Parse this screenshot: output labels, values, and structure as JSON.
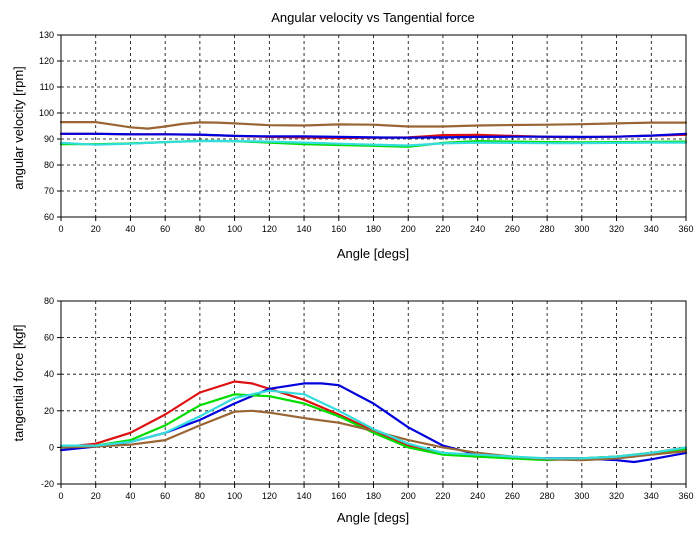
{
  "chart_data": [
    {
      "type": "line",
      "title": "Angular velocity vs Tangential force",
      "xlabel": "Angle [degs]",
      "ylabel": "angular velocity [rpm]",
      "xlim": [
        0,
        360
      ],
      "ylim": [
        60,
        130
      ],
      "x_ticks": [
        "0",
        "20",
        "40",
        "60",
        "80",
        "100",
        "120",
        "140",
        "160",
        "180",
        "200",
        "220",
        "240",
        "260",
        "280",
        "300",
        "320",
        "340",
        "360"
      ],
      "y_ticks": [
        "60",
        "70",
        "80",
        "90",
        "100",
        "110",
        "120",
        "130"
      ],
      "grid": true,
      "series": [
        {
          "color": "#996633",
          "x": [
            0,
            20,
            30,
            40,
            50,
            60,
            70,
            80,
            90,
            100,
            120,
            140,
            160,
            180,
            200,
            220,
            240,
            260,
            280,
            300,
            320,
            340,
            360
          ],
          "y": [
            96.5,
            96.5,
            95.5,
            94.5,
            94,
            94.8,
            95.8,
            96.4,
            96.3,
            96,
            95.3,
            95.2,
            95.6,
            95.5,
            94.8,
            94.8,
            95.2,
            95.4,
            95.5,
            95.7,
            96,
            96.3,
            96.3
          ]
        },
        {
          "color": "#dd1111",
          "x": [
            0,
            20,
            40,
            60,
            80,
            100,
            120,
            140,
            160,
            180,
            200,
            210,
            220,
            240,
            260,
            280,
            300,
            320,
            340,
            360
          ],
          "y": [
            92,
            92,
            91.8,
            91.8,
            91.6,
            91.2,
            90.8,
            90.6,
            90.4,
            90.5,
            90.6,
            91,
            91.5,
            91.6,
            91.2,
            90.8,
            90.7,
            90.9,
            91.3,
            91.6
          ]
        },
        {
          "color": "#0000dd",
          "x": [
            0,
            20,
            40,
            60,
            80,
            100,
            120,
            140,
            160,
            180,
            200,
            220,
            240,
            260,
            280,
            300,
            320,
            340,
            360
          ],
          "y": [
            92,
            92,
            91.8,
            91.8,
            91.7,
            91.2,
            91,
            91,
            90.8,
            90.6,
            90.5,
            90.6,
            90.8,
            90.9,
            90.9,
            90.8,
            90.9,
            91.3,
            92
          ]
        },
        {
          "color": "#00dd00",
          "x": [
            0,
            20,
            40,
            60,
            80,
            100,
            120,
            140,
            160,
            180,
            200,
            220,
            240,
            260,
            280,
            300,
            320,
            340,
            360
          ],
          "y": [
            88,
            88,
            88.3,
            88.8,
            89.3,
            89.2,
            88.6,
            88,
            87.7,
            87.4,
            87,
            88.5,
            89.2,
            89,
            88.8,
            88.7,
            88.8,
            88.9,
            89
          ]
        },
        {
          "color": "#33dddd",
          "x": [
            0,
            20,
            40,
            60,
            80,
            100,
            120,
            140,
            160,
            180,
            200,
            220,
            240,
            260,
            280,
            300,
            320,
            340,
            360
          ],
          "y": [
            88.5,
            87.8,
            88.2,
            88.8,
            89.2,
            89.2,
            89,
            88.6,
            88.2,
            87.8,
            87.5,
            88.3,
            88.6,
            88.5,
            88.4,
            88.4,
            88.5,
            88.6,
            88.6
          ]
        }
      ]
    },
    {
      "type": "line",
      "title": "",
      "xlabel": "Angle [degs]",
      "ylabel": "tangential force [kgf]",
      "xlim": [
        0,
        360
      ],
      "ylim": [
        -20,
        80
      ],
      "x_ticks": [
        "0",
        "20",
        "40",
        "60",
        "80",
        "100",
        "120",
        "140",
        "160",
        "180",
        "200",
        "220",
        "240",
        "260",
        "280",
        "300",
        "320",
        "340",
        "360"
      ],
      "y_ticks": [
        "-20",
        "0",
        "20",
        "40",
        "60",
        "80"
      ],
      "grid": true,
      "series": [
        {
          "color": "#dd1111",
          "x": [
            0,
            20,
            40,
            60,
            80,
            100,
            110,
            120,
            140,
            160,
            180,
            200,
            220,
            240,
            260,
            280,
            300,
            320,
            340,
            360
          ],
          "y": [
            0,
            2,
            8,
            18,
            30,
            36,
            35,
            32,
            26,
            18,
            9,
            1,
            -3,
            -5,
            -5.5,
            -6,
            -6,
            -5,
            -3,
            0
          ]
        },
        {
          "color": "#0000dd",
          "x": [
            0,
            20,
            40,
            60,
            80,
            100,
            120,
            140,
            150,
            160,
            180,
            200,
            220,
            240,
            260,
            280,
            300,
            320,
            330,
            340,
            360
          ],
          "y": [
            -1.5,
            0.5,
            3,
            8,
            15,
            24,
            32,
            35,
            35,
            34,
            24,
            11,
            1,
            -4,
            -6,
            -6,
            -6,
            -7,
            -8,
            -6.5,
            -3
          ]
        },
        {
          "color": "#00dd00",
          "x": [
            0,
            20,
            40,
            60,
            80,
            100,
            120,
            140,
            160,
            180,
            200,
            220,
            240,
            260,
            280,
            300,
            320,
            340,
            360
          ],
          "y": [
            0,
            1,
            4,
            12,
            23,
            29,
            28,
            24,
            17,
            8,
            0,
            -4,
            -5,
            -6,
            -7,
            -6,
            -5,
            -3,
            -1
          ]
        },
        {
          "color": "#996633",
          "x": [
            0,
            20,
            40,
            60,
            80,
            100,
            110,
            120,
            140,
            160,
            180,
            200,
            220,
            240,
            260,
            280,
            300,
            320,
            340,
            360
          ],
          "y": [
            0,
            0.5,
            1.5,
            4,
            12,
            19.5,
            20,
            19,
            16,
            13.5,
            9,
            4,
            0,
            -3,
            -5,
            -6.5,
            -7,
            -6,
            -4,
            -2
          ]
        },
        {
          "color": "#33dddd",
          "x": [
            0,
            20,
            40,
            60,
            80,
            100,
            120,
            140,
            160,
            180,
            200,
            220,
            240,
            260,
            280,
            300,
            320,
            340,
            360
          ],
          "y": [
            1,
            1,
            3,
            8,
            17,
            27,
            31,
            29,
            20,
            10,
            2,
            -3,
            -4,
            -5,
            -6,
            -6,
            -5,
            -3,
            0
          ]
        }
      ]
    }
  ]
}
